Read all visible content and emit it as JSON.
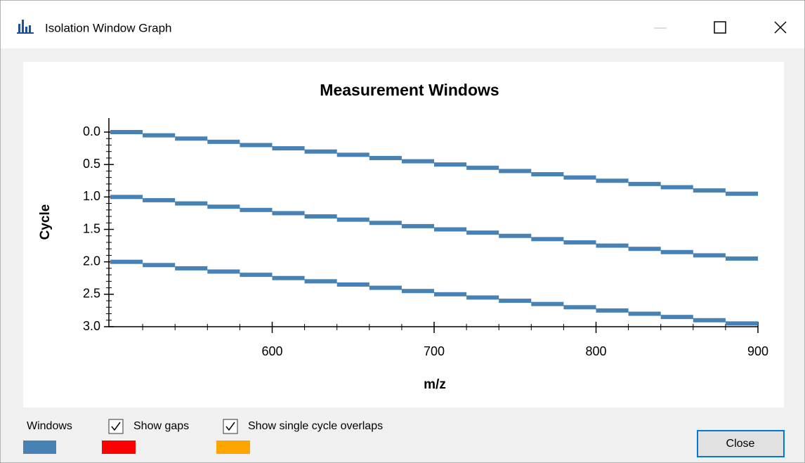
{
  "window": {
    "title": "Isolation Window Graph",
    "controls": [
      {
        "label": "Show gaps",
        "checked": true,
        "color": "#ff0000"
      },
      {
        "label": "Show single cycle overlaps",
        "checked": true,
        "color": "#ffa500"
      }
    ],
    "button": "Close"
  },
  "chart_data": {
    "type": "window-bars",
    "title": "Measurement Windows",
    "x_label": "m/z",
    "y_label": "Cycle",
    "xlim": [
      500,
      900
    ],
    "xticks": [
      600,
      700,
      800,
      900
    ],
    "xminorticks": [
      520,
      540,
      560,
      580,
      620,
      640,
      660,
      680,
      720,
      740,
      760,
      780,
      820,
      840,
      860,
      880
    ],
    "ylim": [
      0,
      3
    ],
    "y_inverted": true,
    "yticks": [
      {
        "value": 0,
        "label": "0.0"
      },
      0.5,
      {
        "value": 1,
        "label": "1.0"
      },
      1.5,
      {
        "value": 2,
        "label": "2.0"
      },
      2.5,
      {
        "value": 3,
        "label": "3.0"
      }
    ],
    "yminorticks": [
      0.1,
      0.2,
      0.3,
      0.4,
      0.6,
      0.7,
      0.8,
      0.9,
      1.1,
      1.2,
      1.3,
      1.4,
      1.6,
      1.7,
      1.8,
      1.9,
      2.1,
      2.2,
      2.3,
      2.4,
      2.6,
      2.7,
      2.8,
      2.9
    ],
    "series": [
      {
        "name": "Windows",
        "color": "#4682b4",
        "x_start": [
          500,
          520,
          540,
          560,
          580,
          600,
          620,
          640,
          660,
          680,
          700,
          720,
          740,
          760,
          780,
          800,
          820,
          840,
          860,
          880,
          500,
          520,
          540,
          560,
          580,
          600,
          620,
          640,
          660,
          680,
          700,
          720,
          740,
          760,
          780,
          800,
          820,
          840,
          860,
          880,
          500,
          520,
          540,
          560,
          580,
          600,
          620,
          640,
          660,
          680,
          700,
          720,
          740,
          760,
          780,
          800,
          820,
          840,
          860,
          880
        ],
        "x_end": [
          520,
          540,
          560,
          580,
          600,
          620,
          640,
          660,
          680,
          700,
          720,
          740,
          760,
          780,
          800,
          820,
          840,
          860,
          880,
          900,
          520,
          540,
          560,
          580,
          600,
          620,
          640,
          660,
          680,
          700,
          720,
          740,
          760,
          780,
          800,
          820,
          840,
          860,
          880,
          900,
          520,
          540,
          560,
          580,
          600,
          620,
          640,
          660,
          680,
          700,
          720,
          740,
          760,
          780,
          800,
          820,
          840,
          860,
          880,
          900
        ],
        "values": [
          0,
          0.05,
          0.1,
          0.15,
          0.2,
          0.25,
          0.3,
          0.35,
          0.4,
          0.45,
          0.5,
          0.55,
          0.6,
          0.65,
          0.7,
          0.75,
          0.8,
          0.85,
          0.9,
          0.95,
          1,
          1.05,
          1.1,
          1.15,
          1.2,
          1.25,
          1.3,
          1.35,
          1.4,
          1.45,
          1.5,
          1.55,
          1.6,
          1.65,
          1.7,
          1.75,
          1.8,
          1.85,
          1.9,
          1.95,
          2,
          2.05,
          2.1,
          2.15,
          2.2,
          2.25,
          2.3,
          2.35,
          2.4,
          2.45,
          2.5,
          2.55,
          2.6,
          2.65,
          2.7,
          2.75,
          2.8,
          2.85,
          2.9,
          2.95
        ]
      }
    ]
  }
}
